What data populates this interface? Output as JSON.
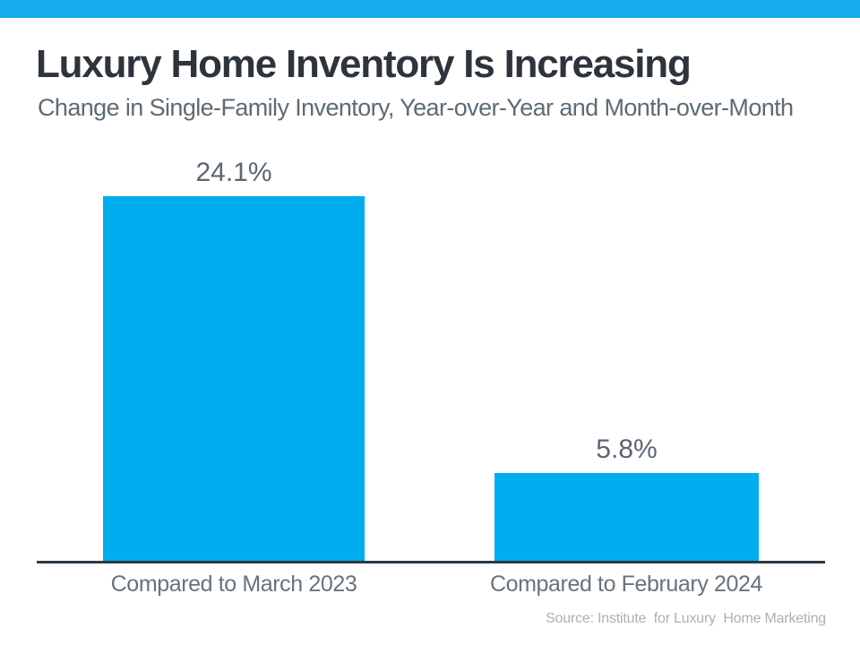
{
  "header": {
    "strip_color": "#16ACEB",
    "title": "Luxury Home Inventory Is Increasing",
    "subtitle": "Change in Single-Family Inventory, Year-over-Year and Month-over-Month"
  },
  "chart_data": {
    "type": "bar",
    "title": "Luxury Home Inventory Is Increasing",
    "subtitle": "Change in Single-Family Inventory, Year-over-Year and Month-over-Month",
    "categories": [
      "Compared to March 2023",
      "Compared to February 2024"
    ],
    "values": [
      24.1,
      5.8
    ],
    "value_labels": [
      "24.1%",
      "5.8%"
    ],
    "unit": "percent",
    "ylim": [
      0,
      26.5
    ],
    "bar_color": "#00ADEF",
    "axis_line_color": "#2E3944",
    "grid": false,
    "legend": false,
    "xlabel": "",
    "ylabel": ""
  },
  "footer": {
    "source": "Source: Institute  for Luxury  Home Marketing"
  }
}
